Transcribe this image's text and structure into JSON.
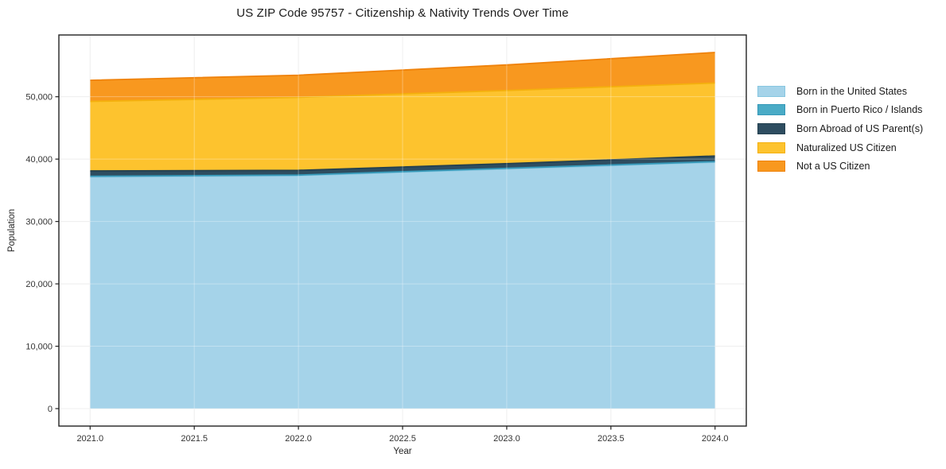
{
  "chart_data": {
    "type": "area",
    "stacked": true,
    "title": "US ZIP Code 95757 - Citizenship & Nativity Trends Over Time",
    "xlabel": "Year",
    "ylabel": "Population",
    "x": [
      2021,
      2022,
      2023,
      2024
    ],
    "series": [
      {
        "name": "Born in the United States",
        "color": "#a5d3e9",
        "edge": "#87c6e0",
        "values": [
          37150,
          37350,
          38430,
          39500
        ]
      },
      {
        "name": "Born in Puerto Rico / Islands",
        "color": "#4aabc6",
        "edge": "#3598b8",
        "values": [
          100,
          100,
          100,
          100
        ]
      },
      {
        "name": "Born Abroad of US Parent(s)",
        "color": "#2e4d60",
        "edge": "#24404f",
        "values": [
          850,
          750,
          740,
          900
        ]
      },
      {
        "name": "Naturalized US Citizen",
        "color": "#fdc32e",
        "edge": "#f4b00d",
        "values": [
          11150,
          11700,
          11730,
          11700
        ]
      },
      {
        "name": "Not a US Citizen",
        "color": "#f8981f",
        "edge": "#ef820b",
        "values": [
          3390,
          3550,
          4100,
          4900
        ]
      }
    ],
    "totals": [
      52640,
      53450,
      55100,
      57100
    ],
    "xlim": [
      2020.85,
      2024.15
    ],
    "ylim": [
      -2800,
      59900
    ],
    "xticks": {
      "values": [
        2021.0,
        2021.5,
        2022.0,
        2022.5,
        2023.0,
        2023.5,
        2024.0
      ],
      "labels": [
        "2021.0",
        "2021.5",
        "2022.0",
        "2022.5",
        "2023.0",
        "2023.5",
        "2024.0"
      ]
    },
    "yticks": {
      "values": [
        0,
        10000,
        20000,
        30000,
        40000,
        50000
      ],
      "labels": [
        "0",
        "10,000",
        "20,000",
        "30,000",
        "40,000",
        "50,000"
      ]
    },
    "grid": true,
    "legend_position": "right-outside",
    "axis_color": "#222222",
    "grid_color": "#e7e7e7",
    "tick_label_color": "#333333"
  }
}
